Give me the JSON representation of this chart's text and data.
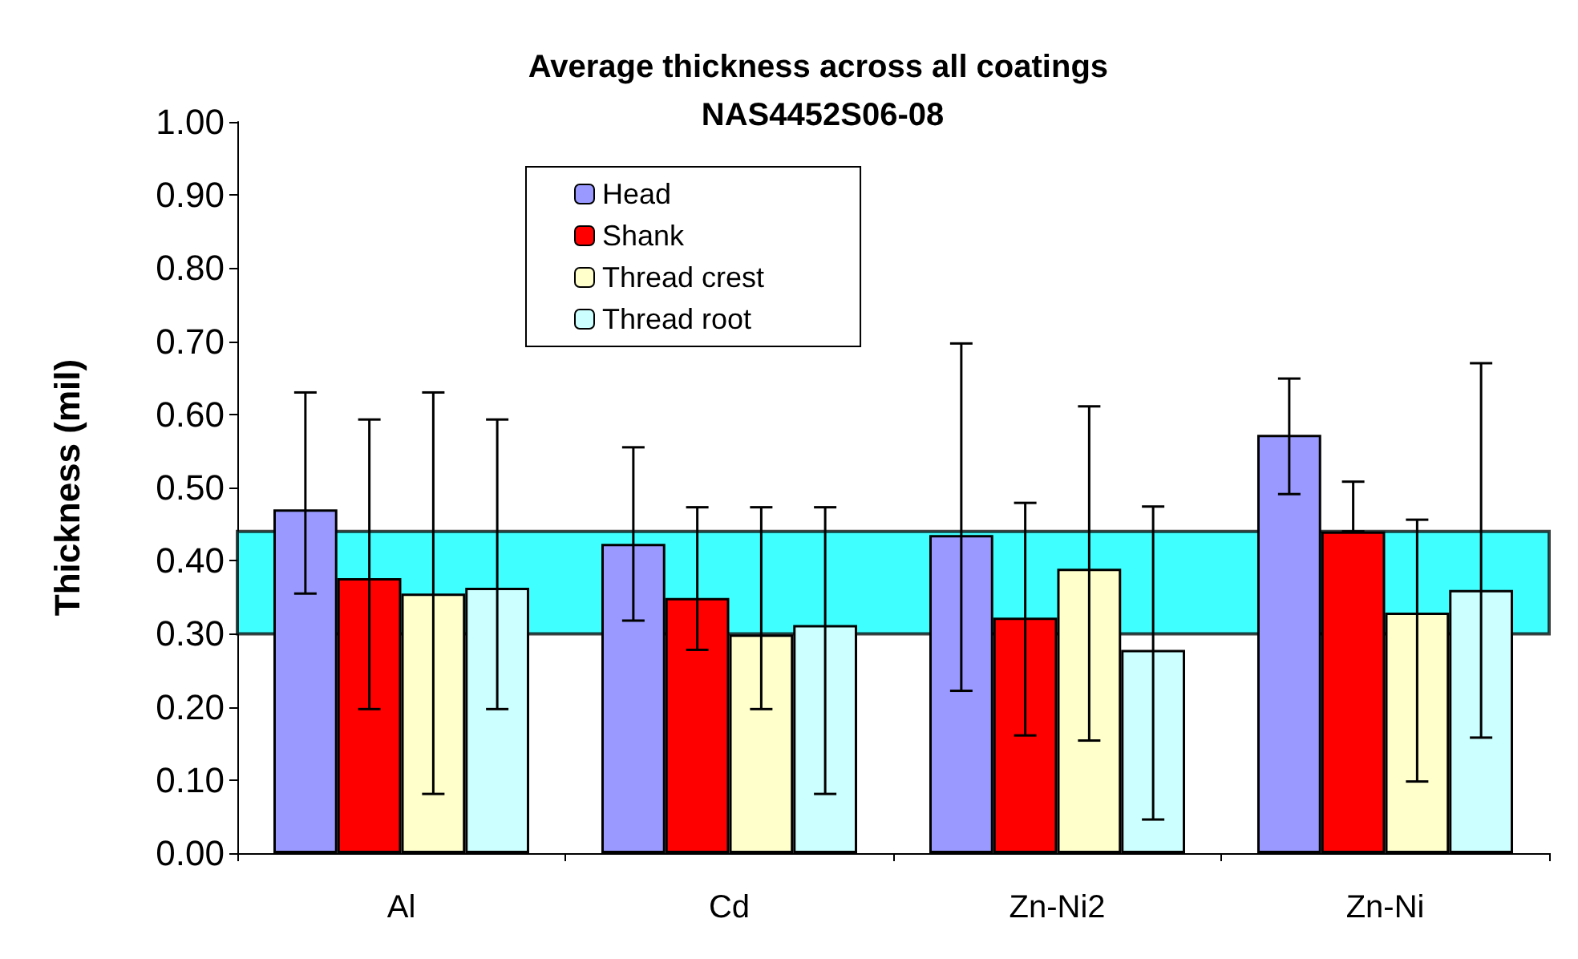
{
  "chart_data": {
    "type": "bar",
    "title": "Average thickness across all coatings NAS4452S06-08",
    "ylabel": "Thickness (mil)",
    "categories": [
      "Al",
      "Cd",
      "Zn-Ni2",
      "Zn-Ni"
    ],
    "series": [
      {
        "name": "Head",
        "color": "#9999ff",
        "values": [
          0.47,
          0.423,
          0.435,
          0.572
        ],
        "errors": [
          [
            0.355,
            0.63
          ],
          [
            0.318,
            0.555
          ],
          [
            0.222,
            0.697
          ],
          [
            0.491,
            0.649
          ]
        ]
      },
      {
        "name": "Shank",
        "color": "#ff0000",
        "values": [
          0.376,
          0.349,
          0.322,
          0.44
        ],
        "errors": [
          [
            0.197,
            0.593
          ],
          [
            0.278,
            0.473
          ],
          [
            0.161,
            0.479
          ],
          [
            0.44,
            0.508
          ]
        ]
      },
      {
        "name": "Thread crest",
        "color": "#ffffcc",
        "values": [
          0.355,
          0.299,
          0.389,
          0.329
        ],
        "errors": [
          [
            0.081,
            0.63
          ],
          [
            0.197,
            0.473
          ],
          [
            0.154,
            0.611
          ],
          [
            0.098,
            0.456
          ]
        ]
      },
      {
        "name": "Thread root",
        "color": "#ccffff",
        "values": [
          0.363,
          0.312,
          0.278,
          0.36
        ],
        "errors": [
          [
            0.197,
            0.593
          ],
          [
            0.081,
            0.473
          ],
          [
            0.046,
            0.474
          ],
          [
            0.158,
            0.67
          ]
        ]
      }
    ],
    "ylim": [
      0,
      1
    ],
    "yticks": [
      {
        "value": 0,
        "label": "0.00"
      },
      {
        "value": 0.1,
        "label": "0.10"
      },
      {
        "value": 0.2,
        "label": "0.20"
      },
      {
        "value": 0.3,
        "label": "0.30"
      },
      {
        "value": 0.4,
        "label": "0.40"
      },
      {
        "value": 0.5,
        "label": "0.50"
      },
      {
        "value": 0.6,
        "label": "0.60"
      },
      {
        "value": 0.7,
        "label": "0.70"
      },
      {
        "value": 0.8,
        "label": "0.80"
      },
      {
        "value": 0.9,
        "label": "0.90"
      },
      {
        "value": 1,
        "label": "1.00"
      }
    ],
    "bands": [
      {
        "axis": "y",
        "from": 0.3,
        "to": 0.44,
        "color": "#00ffff"
      }
    ],
    "legend": "top",
    "grid": false
  }
}
